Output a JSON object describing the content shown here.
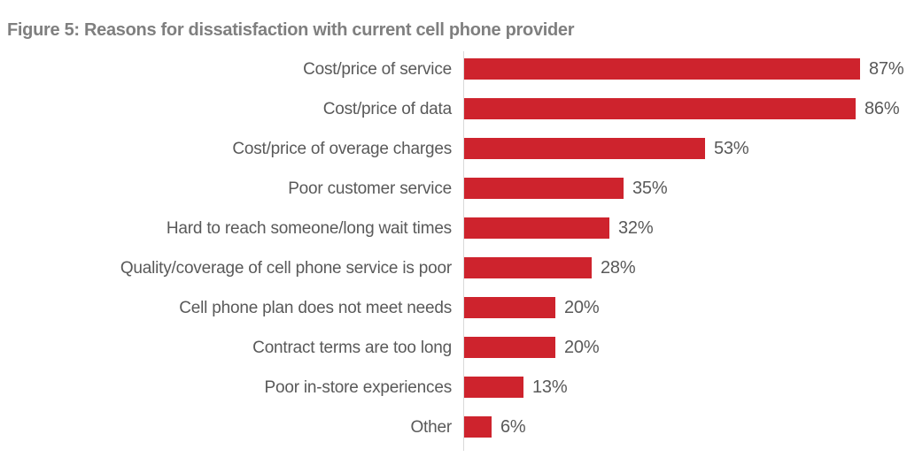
{
  "title": "Figure 5: Reasons for dissatisfaction with current cell phone provider",
  "chart_data": {
    "type": "bar",
    "orientation": "horizontal",
    "title": "Figure 5: Reasons for dissatisfaction with current cell phone provider",
    "categories": [
      "Cost/price of service",
      "Cost/price of data",
      "Cost/price of overage charges",
      "Poor customer service",
      "Hard to reach someone/long wait times",
      "Quality/coverage of cell phone service is poor",
      "Cell phone plan does not meet needs",
      "Contract terms are too long",
      "Poor in-store experiences",
      "Other"
    ],
    "values": [
      87,
      86,
      53,
      35,
      32,
      28,
      20,
      20,
      13,
      6
    ],
    "value_labels": [
      "87%",
      "86%",
      "53%",
      "35%",
      "32%",
      "28%",
      "20%",
      "20%",
      "13%",
      "6%"
    ],
    "value_suffix": "%",
    "xlabel": "",
    "ylabel": "",
    "xlim": [
      0,
      100
    ],
    "grid": false,
    "legend": "none",
    "bar_color": "#ce232d",
    "label_color": "#595959",
    "title_color": "#7f7f7f",
    "axis_line_color": "#d9d9d9"
  }
}
